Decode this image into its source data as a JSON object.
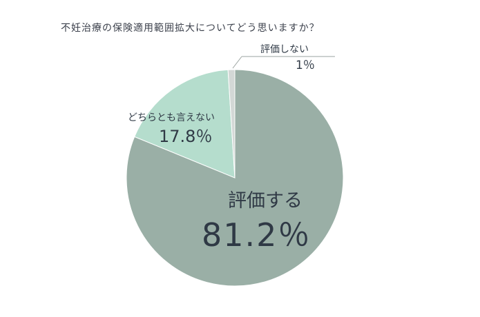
{
  "title": "不妊治療の保険適用範囲拡大についてどう思いますか？",
  "chart_data": {
    "type": "pie",
    "title": "不妊治療の保険適用範囲拡大についてどう思いますか？",
    "slices": [
      {
        "label": "評価する",
        "value": 81.2,
        "value_label": "81.2％",
        "color": "#9aafa6"
      },
      {
        "label": "どちらとも言えない",
        "value": 17.8,
        "value_label": "17.8％",
        "color": "#b5ddcd"
      },
      {
        "label": "評価しない",
        "value": 1,
        "value_label": "1％",
        "color": "#d3d8d6"
      }
    ]
  }
}
